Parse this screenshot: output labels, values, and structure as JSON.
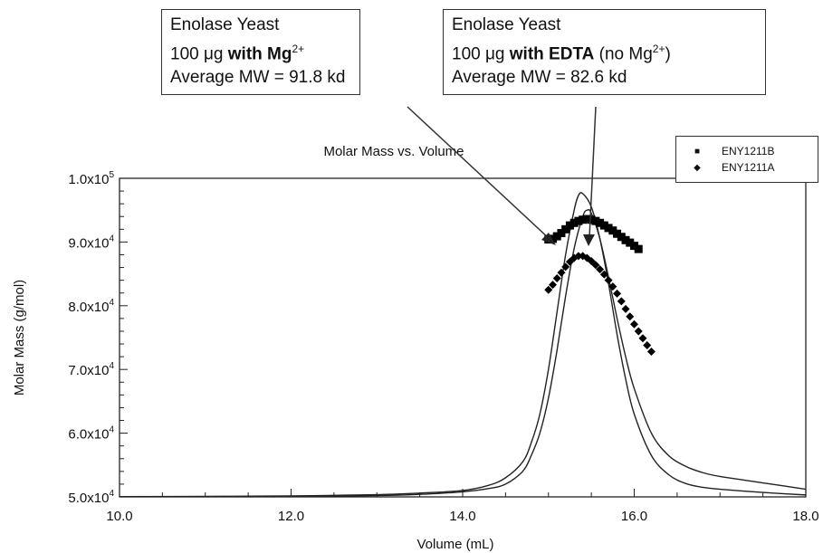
{
  "chart_data": {
    "type": "scatter",
    "title": "Molar Mass vs. Volume",
    "xlabel": "Volume (mL)",
    "ylabel": "Molar Mass (g/mol)",
    "xlim": [
      10.0,
      18.0
    ],
    "ylim": [
      50000,
      100000
    ],
    "x_ticks": [
      "10.0",
      "12.0",
      "14.0",
      "16.0",
      "18.0"
    ],
    "y_ticks": [
      {
        "mant": "5.0x10",
        "exp": "4"
      },
      {
        "mant": "6.0x10",
        "exp": "4"
      },
      {
        "mant": "7.0x10",
        "exp": "4"
      },
      {
        "mant": "8.0x10",
        "exp": "4"
      },
      {
        "mant": "9.0x10",
        "exp": "4"
      },
      {
        "mant": "1.0x10",
        "exp": "5"
      }
    ],
    "legend_position": "top-right",
    "series": [
      {
        "name": "ENY1211B",
        "marker": "square",
        "color": "#000000",
        "x": [
          15.0,
          15.05,
          15.1,
          15.15,
          15.2,
          15.25,
          15.3,
          15.35,
          15.4,
          15.45,
          15.5,
          15.55,
          15.6,
          15.65,
          15.7,
          15.75,
          15.8,
          15.85,
          15.9,
          15.95,
          16.0,
          16.05
        ],
        "y": [
          90400,
          90500,
          90900,
          91400,
          92000,
          92600,
          93000,
          93300,
          93500,
          93600,
          93500,
          93300,
          93000,
          92600,
          92200,
          91800,
          91300,
          90800,
          90300,
          89900,
          89400,
          88900
        ]
      },
      {
        "name": "ENY1211A",
        "marker": "diamond",
        "color": "#000000",
        "x": [
          15.0,
          15.05,
          15.1,
          15.15,
          15.2,
          15.25,
          15.3,
          15.35,
          15.4,
          15.45,
          15.5,
          15.55,
          15.6,
          15.65,
          15.7,
          15.75,
          15.8,
          15.85,
          15.9,
          15.95,
          16.0,
          16.05,
          16.1,
          16.15,
          16.2
        ],
        "y": [
          82500,
          83300,
          84300,
          85200,
          86100,
          86900,
          87500,
          87800,
          87800,
          87500,
          87000,
          86400,
          85700,
          84900,
          84000,
          83000,
          81900,
          80700,
          79500,
          78300,
          77100,
          76000,
          74900,
          73800,
          72800
        ]
      }
    ],
    "trace_curves": [
      {
        "name": "trace-1",
        "x": [
          10.0,
          11.0,
          12.0,
          13.0,
          13.5,
          14.0,
          14.3,
          14.5,
          14.7,
          14.8,
          14.9,
          15.0,
          15.1,
          15.2,
          15.3,
          15.35,
          15.4,
          15.5,
          15.6,
          15.7,
          15.8,
          15.9,
          16.0,
          16.2,
          16.4,
          16.6,
          16.8,
          17.0,
          17.5,
          18.0
        ],
        "y": [
          50050,
          50080,
          50150,
          50350,
          50600,
          51000,
          51800,
          53000,
          55500,
          58500,
          63000,
          70000,
          79000,
          88000,
          95000,
          97300,
          97600,
          95500,
          90500,
          83500,
          75500,
          68500,
          63000,
          56500,
          53500,
          52100,
          51500,
          51200,
          50700,
          50300
        ]
      },
      {
        "name": "trace-2",
        "x": [
          10.0,
          11.0,
          12.0,
          13.0,
          13.5,
          14.0,
          14.3,
          14.5,
          14.7,
          14.8,
          14.9,
          15.0,
          15.1,
          15.2,
          15.3,
          15.4,
          15.45,
          15.5,
          15.6,
          15.7,
          15.8,
          15.9,
          16.0,
          16.2,
          16.4,
          16.6,
          16.8,
          17.0,
          17.5,
          18.0
        ],
        "y": [
          50020,
          50040,
          50080,
          50200,
          50400,
          50800,
          51300,
          52000,
          54000,
          56500,
          60000,
          65500,
          73000,
          81500,
          89000,
          94000,
          95000,
          94500,
          90500,
          84500,
          78000,
          72000,
          67000,
          60000,
          56500,
          54800,
          53800,
          53200,
          52200,
          51200
        ]
      }
    ]
  },
  "callouts": {
    "left": {
      "line1": "Enolase Yeast",
      "line2_prefix": "100 μg ",
      "line2_bold": "with Mg",
      "line2_sup": "2+",
      "line3": "Average MW = 91.8 kd"
    },
    "right": {
      "line1": "Enolase Yeast",
      "line2_prefix": "100 μg ",
      "line2_bold": "with EDTA",
      "line2_rest": " (no Mg",
      "line2_sup": "2+",
      "line2_end": ")",
      "line3": "Average MW = 82.6 kd"
    }
  }
}
